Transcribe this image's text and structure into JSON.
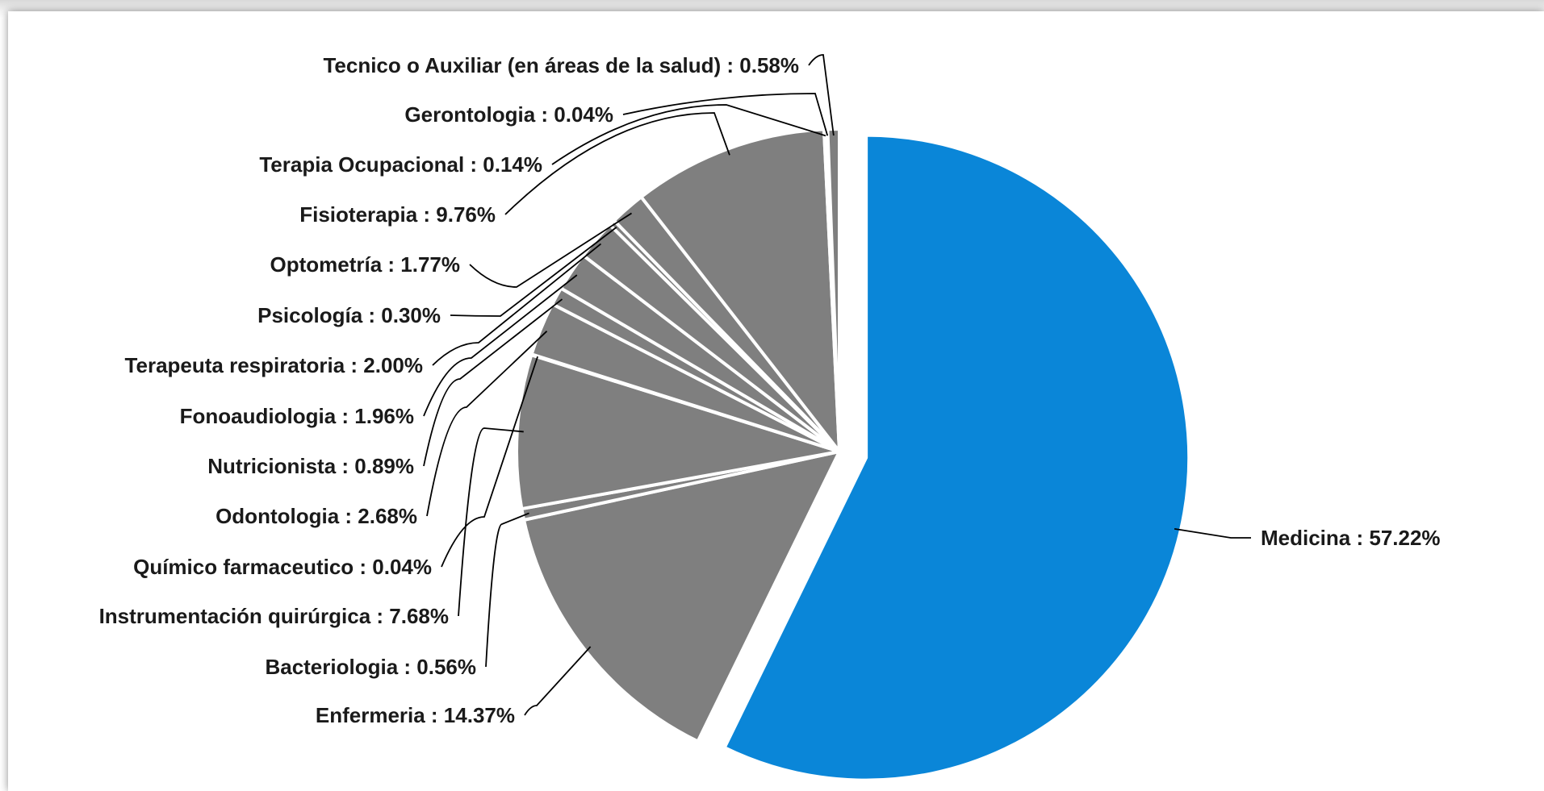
{
  "chart_data": {
    "type": "pie",
    "exploded": "Medicina",
    "colors": {
      "highlight": "#0a86d8",
      "other": "#7f7f7f",
      "leader": "#000000"
    },
    "slices": [
      {
        "name": "Medicina",
        "value": 57.22,
        "label": "Medicina : 57.22%"
      },
      {
        "name": "Enfermeria",
        "value": 14.37,
        "label": "Enfermeria : 14.37%"
      },
      {
        "name": "Bacteriologia",
        "value": 0.56,
        "label": "Bacteriologia : 0.56%"
      },
      {
        "name": "Instrumentación quirúrgica",
        "value": 7.68,
        "label": "Instrumentación quirúrgica : 7.68%"
      },
      {
        "name": "Químico farmaceutico",
        "value": 0.04,
        "label": "Químico farmaceutico : 0.04%"
      },
      {
        "name": "Odontologia",
        "value": 2.68,
        "label": "Odontologia : 2.68%"
      },
      {
        "name": "Nutricionista",
        "value": 0.89,
        "label": "Nutricionista : 0.89%"
      },
      {
        "name": "Fonoaudiologia",
        "value": 1.96,
        "label": "Fonoaudiologia : 1.96%"
      },
      {
        "name": "Terapeuta respiratoria",
        "value": 2.0,
        "label": "Terapeuta respiratoria : 2.00%"
      },
      {
        "name": "Psicología",
        "value": 0.3,
        "label": "Psicología : 0.30%"
      },
      {
        "name": "Optometría",
        "value": 1.77,
        "label": "Optometría : 1.77%"
      },
      {
        "name": "Fisioterapia",
        "value": 9.76,
        "label": "Fisioterapia : 9.76%"
      },
      {
        "name": "Terapia Ocupacional",
        "value": 0.14,
        "label": "Terapia Ocupacional : 0.14%"
      },
      {
        "name": "Gerontologia",
        "value": 0.04,
        "label": "Gerontologia : 0.04%"
      },
      {
        "name": "Tecnico o Auxiliar (en áreas de la salud)",
        "value": 0.58,
        "label": "Tecnico o Auxiliar (en áreas de la salud) : 0.58%"
      }
    ]
  }
}
